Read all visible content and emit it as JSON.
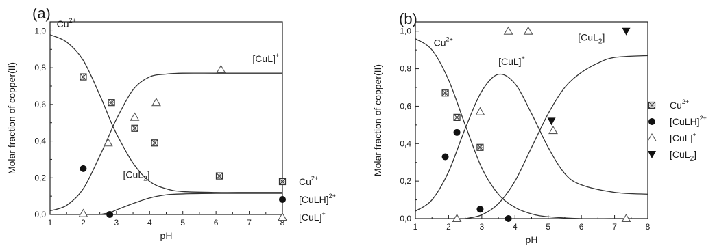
{
  "chart_data": [
    {
      "type": "line",
      "panel_label": "(a)",
      "xlabel": "pH",
      "ylabel": "Molar fraction of copper(II)",
      "xlim": [
        1,
        8
      ],
      "ylim": [
        0,
        1.05
      ],
      "xticks": [
        "1",
        "2",
        "3",
        "4",
        "5",
        "6",
        "7",
        "8"
      ],
      "yticks": [
        "0,0",
        "0,2",
        "0,4",
        "0,6",
        "0,8",
        "1,0"
      ],
      "grid": false,
      "legend_position": "right",
      "curves": [
        {
          "label": "Cu2+",
          "x": [
            1,
            1.5,
            2,
            2.5,
            2.8,
            3,
            3.5,
            4,
            4.5,
            5,
            6,
            7,
            8
          ],
          "y": [
            0.98,
            0.94,
            0.84,
            0.65,
            0.52,
            0.44,
            0.28,
            0.18,
            0.14,
            0.125,
            0.12,
            0.12,
            0.12
          ]
        },
        {
          "label": "[CuL]+",
          "x": [
            1,
            1.5,
            2,
            2.5,
            2.8,
            3,
            3.5,
            4,
            4.5,
            5,
            6,
            7,
            8
          ],
          "y": [
            0.02,
            0.05,
            0.14,
            0.32,
            0.44,
            0.52,
            0.68,
            0.75,
            0.765,
            0.77,
            0.77,
            0.77,
            0.77
          ]
        },
        {
          "label": "[CuL2]",
          "x": [
            2.5,
            2.8,
            3,
            3.5,
            4,
            4.5,
            5,
            6,
            7,
            8
          ],
          "y": [
            0,
            0.01,
            0.025,
            0.06,
            0.09,
            0.107,
            0.112,
            0.115,
            0.115,
            0.115
          ]
        }
      ],
      "curve_annotations": [
        {
          "text": "Cu",
          "sup": "2+",
          "x": 1.2,
          "y": 1.02
        },
        {
          "text": "[CuL]",
          "sup": "+",
          "x": 7.1,
          "y": 0.83
        },
        {
          "text": "[CuL",
          "sub": "2",
          "after": "]",
          "x": 3.2,
          "y": 0.2
        }
      ],
      "series": [
        {
          "name": "Cu2+",
          "label_text": "Cu",
          "label_sup": "2+",
          "marker": "square-x",
          "points": [
            [
              2.0,
              0.75
            ],
            [
              2.85,
              0.61
            ],
            [
              3.55,
              0.47
            ],
            [
              4.15,
              0.39
            ],
            [
              6.1,
              0.21
            ]
          ]
        },
        {
          "name": "[CuLH]2+",
          "label_text": "[CuLH]",
          "label_sup": "2+",
          "marker": "filled-circle",
          "points": [
            [
              2.0,
              0.25
            ],
            [
              2.8,
              0.0
            ]
          ]
        },
        {
          "name": "[CuL]+",
          "label_text": "[CuL]",
          "label_sup": "+",
          "marker": "open-triangle",
          "points": [
            [
              2.0,
              0.005
            ],
            [
              2.75,
              0.39
            ],
            [
              3.55,
              0.53
            ],
            [
              4.2,
              0.61
            ],
            [
              6.15,
              0.79
            ]
          ]
        }
      ]
    },
    {
      "type": "line",
      "panel_label": "(b)",
      "xlabel": "pH",
      "ylabel": "Molar fraction of copper(II)",
      "xlim": [
        1,
        8
      ],
      "ylim": [
        0,
        1.05
      ],
      "xticks": [
        "1",
        "2",
        "3",
        "4",
        "5",
        "6",
        "7",
        "8"
      ],
      "yticks": [
        "0,0",
        "0,2",
        "0,4",
        "0,6",
        "0,8",
        "1,0"
      ],
      "grid": false,
      "legend_position": "right",
      "curves": [
        {
          "label": "Cu2+",
          "x": [
            1,
            1.5,
            2,
            2.5,
            3,
            3.5,
            4,
            4.5,
            5,
            6,
            7,
            8
          ],
          "y": [
            0.96,
            0.9,
            0.74,
            0.5,
            0.27,
            0.13,
            0.06,
            0.025,
            0.01,
            0,
            0,
            0
          ]
        },
        {
          "label": "[CuL]+",
          "x": [
            1,
            1.5,
            2,
            2.5,
            3,
            3.5,
            4,
            4.5,
            5,
            5.5,
            6,
            7,
            8
          ],
          "y": [
            0.04,
            0.1,
            0.25,
            0.48,
            0.68,
            0.77,
            0.72,
            0.56,
            0.38,
            0.24,
            0.18,
            0.14,
            0.13
          ]
        },
        {
          "label": "[CuL2]",
          "x": [
            2.5,
            3,
            3.5,
            4,
            4.5,
            5,
            5.5,
            6,
            6.5,
            7,
            8
          ],
          "y": [
            0,
            0.02,
            0.08,
            0.2,
            0.38,
            0.56,
            0.7,
            0.78,
            0.83,
            0.86,
            0.87
          ]
        }
      ],
      "curve_annotations": [
        {
          "text": "Cu",
          "sup": "2+",
          "x": 1.55,
          "y": 0.92
        },
        {
          "text": "[CuL]",
          "sup": "+",
          "x": 3.5,
          "y": 0.82
        },
        {
          "text": "[CuL",
          "sub": "2",
          "after": "]",
          "x": 5.9,
          "y": 0.95
        }
      ],
      "series": [
        {
          "name": "Cu2+",
          "label_text": "Cu",
          "label_sup": "2+",
          "marker": "square-x",
          "points": [
            [
              1.9,
              0.67
            ],
            [
              2.25,
              0.54
            ],
            [
              2.95,
              0.38
            ]
          ]
        },
        {
          "name": "[CuLH]2+",
          "label_text": "[CuLH]",
          "label_sup": "2+",
          "marker": "filled-circle",
          "points": [
            [
              1.9,
              0.33
            ],
            [
              2.25,
              0.46
            ],
            [
              2.95,
              0.05
            ],
            [
              3.8,
              0.0
            ]
          ]
        },
        {
          "name": "[CuL]+",
          "label_text": "[CuL]",
          "label_sup": "+",
          "marker": "open-triangle",
          "points": [
            [
              2.25,
              0.0
            ],
            [
              2.95,
              0.57
            ],
            [
              3.8,
              1.0
            ],
            [
              4.4,
              1.0
            ],
            [
              5.15,
              0.47
            ],
            [
              7.35,
              0.0
            ]
          ]
        },
        {
          "name": "[CuL2]",
          "label_text": "[CuL",
          "label_sub": "2",
          "label_after": "]",
          "marker": "filled-down-triangle",
          "points": [
            [
              5.1,
              0.52
            ],
            [
              7.35,
              1.0
            ]
          ]
        }
      ]
    }
  ]
}
